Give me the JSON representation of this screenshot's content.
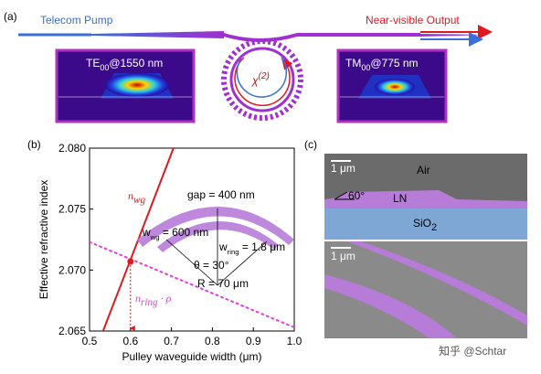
{
  "panel_labels": [
    "(a)",
    "(b)",
    "(c)"
  ],
  "schematic": {
    "pump": "Telecom Pump",
    "output": "Near-visible Output",
    "te_mode": {
      "main": "TE",
      "sub": "00",
      "tail": "@1550 nm"
    },
    "tm_mode": {
      "main": "TM",
      "sub": "00",
      "tail": "@775 nm"
    },
    "chi": {
      "main": "χ",
      "sup": "(2)"
    }
  },
  "sem": {
    "scale_top": "1 μm",
    "air": "Air",
    "angle": "60°",
    "ln": "LN",
    "sio2": {
      "main": "SiO",
      "sub": "2"
    },
    "scale_bottom": "1 μm"
  },
  "watermark": "知乎 @Schtar",
  "chart_data": {
    "type": "line",
    "x_label": "Pulley waveguide width (μm)",
    "y_label": "Effective refractive index",
    "xlim": [
      0.5,
      1.0
    ],
    "ylim": [
      2.065,
      2.08
    ],
    "xticks": [
      0.5,
      0.6,
      0.7,
      0.8,
      0.9,
      {
        "value": 1,
        "label": "1.0"
      }
    ],
    "yticks": [
      2.065,
      {
        "value": 2.07,
        "label": "2.070"
      },
      2.075,
      {
        "value": 2.08,
        "label": "2.080"
      }
    ],
    "series": [
      {
        "color": "#e0191f",
        "style": "solid",
        "x": [
          0.533,
          0.705
        ],
        "values": [
          2.065,
          2.08
        ]
      },
      {
        "color": "#e040d8",
        "style": "dotted",
        "x": [
          0.5,
          1.0
        ],
        "values": [
          2.0723,
          2.0653
        ]
      }
    ],
    "marker": {
      "x": 0.6,
      "y": 2.0707,
      "color": "#e0191f"
    },
    "curve_labels": [
      {
        "main": "n",
        "sub": "wg"
      },
      {
        "main": "n",
        "sub": "ring",
        "tail": " · ρ"
      }
    ],
    "inset": {
      "gap": "gap = 400 nm",
      "wwg": {
        "main": "w",
        "sub": "wg",
        "tail": " = 600 nm"
      },
      "wring": {
        "main": "w",
        "sub": "ring",
        "tail": " = 1.8 μm"
      },
      "theta": "θ = 30°",
      "radius": "R = 70 μm"
    }
  }
}
